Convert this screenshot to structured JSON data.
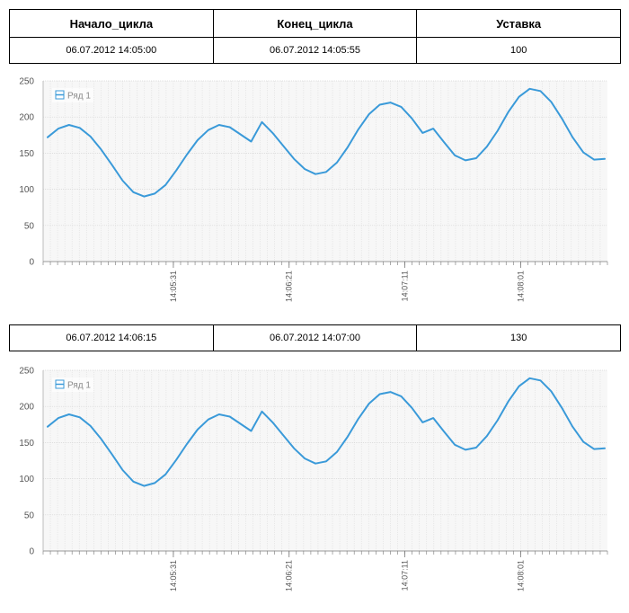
{
  "table_header": {
    "col1": "Начало_цикла",
    "col2": "Конец_цикла",
    "col3": "Уставка"
  },
  "cycles": [
    {
      "start": "06.07.2012 14:05:00",
      "end": "06.07.2012 14:05:55",
      "setpoint": "100"
    },
    {
      "start": "06.07.2012 14:06:15",
      "end": "06.07.2012 14:07:00",
      "setpoint": "130"
    }
  ],
  "chart_data": [
    {
      "type": "line",
      "legend": "Ряд 1",
      "line_color": "#3a9ad9",
      "ylim": [
        0,
        250
      ],
      "yticks": [
        0,
        50,
        100,
        150,
        200,
        250
      ],
      "xtick_labels": [
        "14:05:31",
        "14:06:21",
        "14:07:11",
        "14:08:01"
      ],
      "xtick_index": [
        18,
        34,
        50,
        66
      ],
      "series": [
        {
          "name": "Ряд 1",
          "values": [
            172,
            184,
            189,
            185,
            173,
            155,
            134,
            112,
            96,
            90,
            94,
            106,
            126,
            148,
            168,
            182,
            189,
            186,
            176,
            166,
            193,
            178,
            160,
            142,
            128,
            121,
            124,
            137,
            158,
            183,
            204,
            217,
            220,
            214,
            198,
            178,
            184,
            165,
            147,
            140,
            143,
            159,
            181,
            207,
            228,
            239,
            236,
            221,
            198,
            172,
            151,
            141,
            142
          ]
        }
      ]
    },
    {
      "type": "line",
      "legend": "Ряд 1",
      "line_color": "#3a9ad9",
      "ylim": [
        0,
        250
      ],
      "yticks": [
        0,
        50,
        100,
        150,
        200,
        250
      ],
      "xtick_labels": [
        "14:05:31",
        "14:06:21",
        "14:07:11",
        "14:08:01"
      ],
      "xtick_index": [
        18,
        34,
        50,
        66
      ],
      "series": [
        {
          "name": "Ряд 1",
          "values": [
            172,
            184,
            189,
            185,
            173,
            155,
            134,
            112,
            96,
            90,
            94,
            106,
            126,
            148,
            168,
            182,
            189,
            186,
            176,
            166,
            193,
            178,
            160,
            142,
            128,
            121,
            124,
            137,
            158,
            183,
            204,
            217,
            220,
            214,
            198,
            178,
            184,
            165,
            147,
            140,
            143,
            159,
            181,
            207,
            228,
            239,
            236,
            221,
            198,
            172,
            151,
            141,
            142
          ]
        }
      ]
    }
  ]
}
